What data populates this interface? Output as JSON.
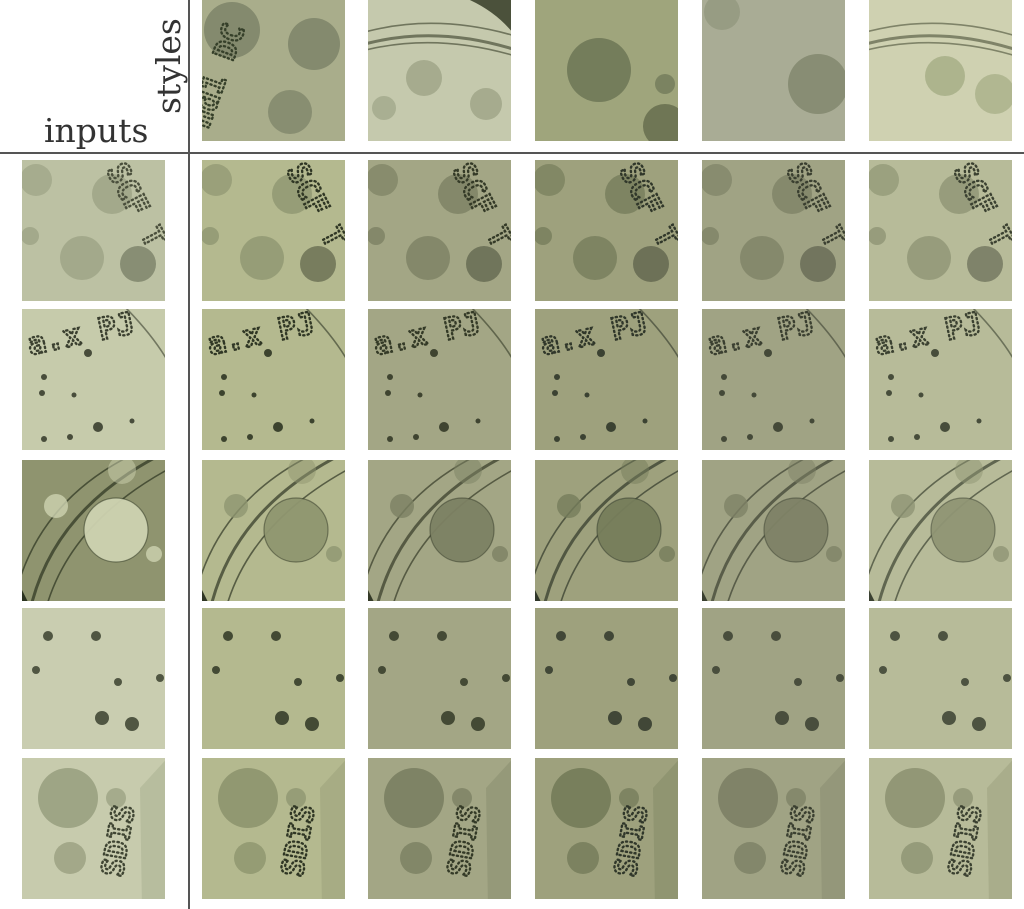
{
  "labels": {
    "inputs": "inputs",
    "styles": "styles"
  },
  "style_images": [
    {
      "icon": "petri-text-colonies",
      "bg": "#a9ad8b",
      "tint": "#7f866a",
      "accent": "#36402a"
    },
    {
      "icon": "petri-rim",
      "bg": "#c5c9ad",
      "tint": "#9da486",
      "accent": "#4b513b"
    },
    {
      "icon": "single-colony",
      "bg": "#9fa57c",
      "tint": "#727a5a",
      "accent": "#40482e"
    },
    {
      "icon": "colony-pale",
      "bg": "#a9ac95",
      "tint": "#868b72",
      "accent": "#5f644f"
    },
    {
      "icon": "petri-rim-colonies",
      "bg": "#cfd1b1",
      "tint": "#a9b08a",
      "accent": "#5d6349"
    }
  ],
  "input_images": [
    {
      "icon": "text-colonies",
      "bg": "#bcc1a3",
      "tint": "#9ca284",
      "accent": "#4a4f3c"
    },
    {
      "icon": "lettering-dots",
      "bg": "#c6cbab",
      "tint": "#7f8569",
      "accent": "#3a3f2f"
    },
    {
      "icon": "plate-edge-colony",
      "bg": "#8f946f",
      "tint": "#cdd2b0",
      "accent": "#2b3320"
    },
    {
      "icon": "dark-dots",
      "bg": "#c9cdb0",
      "tint": "#7e8468",
      "accent": "#3b412f"
    },
    {
      "icon": "large-colony-text",
      "bg": "#c7cbad",
      "tint": "#9ca283",
      "accent": "#3f4533"
    }
  ],
  "result_variants": [
    {
      "bg": "#b4b98f",
      "tint": "#8f9670",
      "accent": "#2f3624"
    },
    {
      "bg": "#a3a685",
      "tint": "#7c8163",
      "accent": "#343a27"
    },
    {
      "bg": "#9ea17d",
      "tint": "#767d5b",
      "accent": "#30372a"
    },
    {
      "bg": "#a0a384",
      "tint": "#7e8266",
      "accent": "#3a3f30"
    },
    {
      "bg": "#b7bb99",
      "tint": "#8f9574",
      "accent": "#3b4131"
    }
  ]
}
